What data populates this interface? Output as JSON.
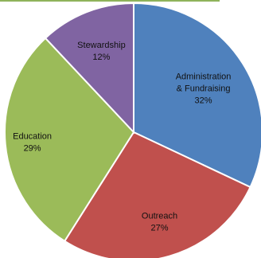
{
  "chart_data": {
    "type": "pie",
    "slices": [
      {
        "label": "Administration & Fundraising",
        "label_lines": [
          "Administration",
          "& Fundraising"
        ],
        "value": 32,
        "value_label": "32%",
        "color": "#4F81BD"
      },
      {
        "label": "Outreach",
        "label_lines": [
          "Outreach"
        ],
        "value": 27,
        "value_label": "27%",
        "color": "#C0504D"
      },
      {
        "label": "Education",
        "label_lines": [
          "Education"
        ],
        "value": 29,
        "value_label": "29%",
        "color": "#9BBB59"
      },
      {
        "label": "Stewardship",
        "label_lines": [
          "Stewardship"
        ],
        "value": 12,
        "value_label": "12%",
        "color": "#8064A2"
      }
    ],
    "start_angle_deg": 0,
    "direction": "clockwise",
    "legend": "none"
  }
}
